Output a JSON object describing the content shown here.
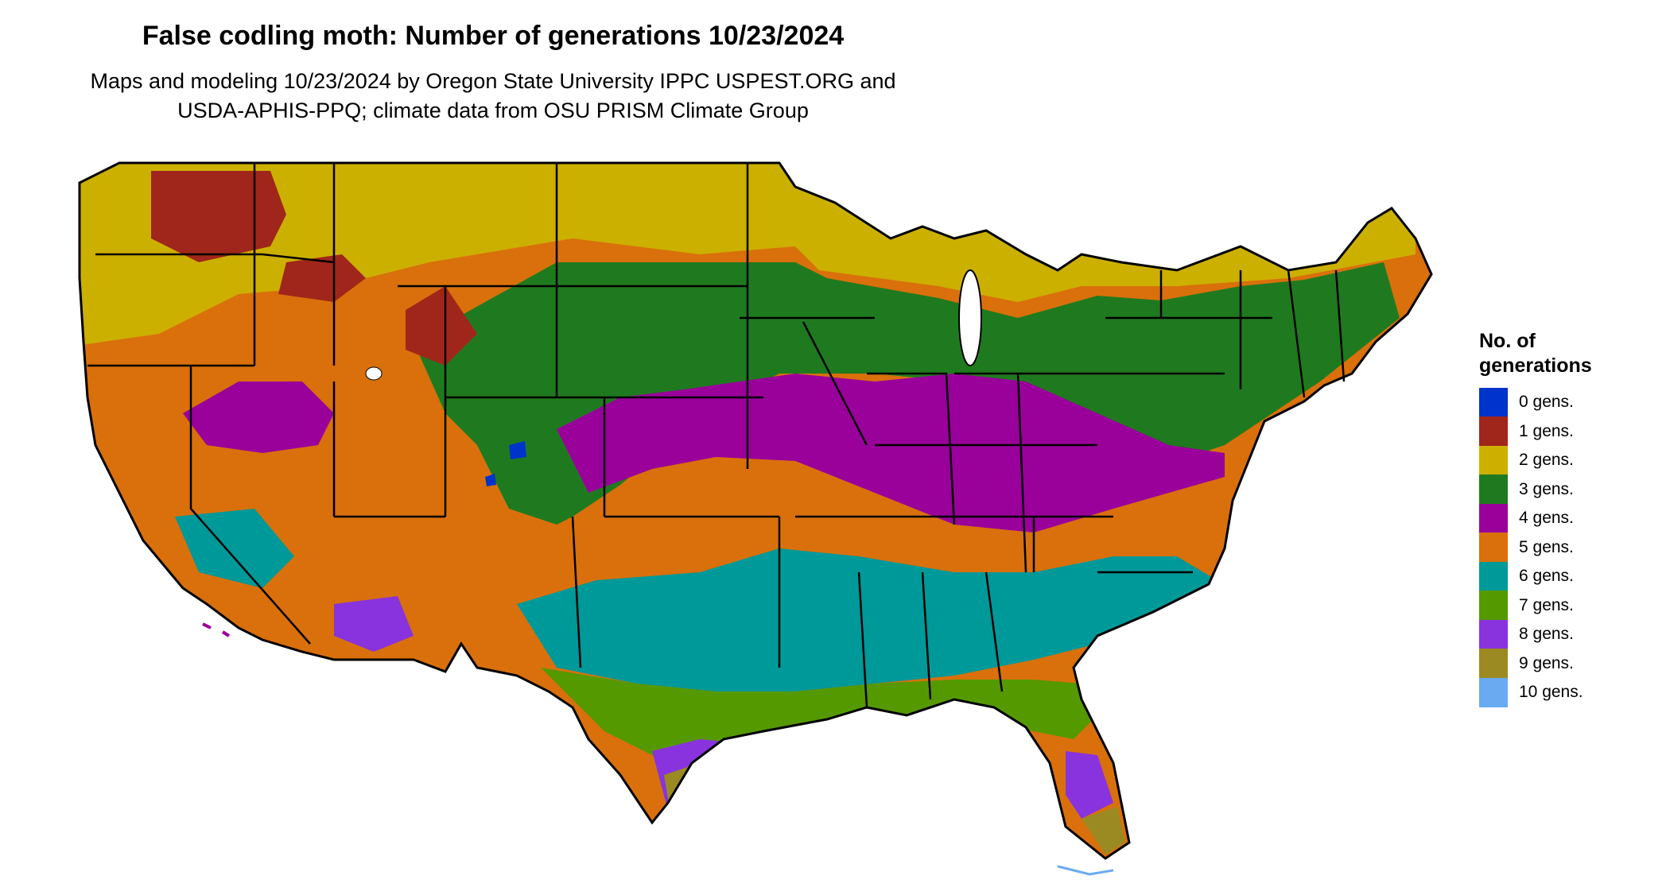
{
  "title": "False codling moth: Number of generations 10/23/2024",
  "subtitle_line1": "Maps and modeling 10/23/2024 by Oregon State University IPPC USPEST.ORG and",
  "subtitle_line2": "USDA-APHIS-PPQ; climate data from OSU PRISM Climate Group",
  "legend": {
    "title_line1": "No. of",
    "title_line2": "generations",
    "items": [
      {
        "label": "0 gens.",
        "color": "#0033cc"
      },
      {
        "label": "1 gens.",
        "color": "#a0261b"
      },
      {
        "label": "2 gens.",
        "color": "#ccb000"
      },
      {
        "label": "3 gens.",
        "color": "#1f7a1f"
      },
      {
        "label": "4 gens.",
        "color": "#9a009a"
      },
      {
        "label": "5 gens.",
        "color": "#d9700b"
      },
      {
        "label": "6 gens.",
        "color": "#009999"
      },
      {
        "label": "7 gens.",
        "color": "#559900"
      },
      {
        "label": "8 gens.",
        "color": "#8833dd"
      },
      {
        "label": "9 gens.",
        "color": "#9b8a22"
      },
      {
        "label": "10 gens.",
        "color": "#6aaaf0"
      }
    ]
  }
}
